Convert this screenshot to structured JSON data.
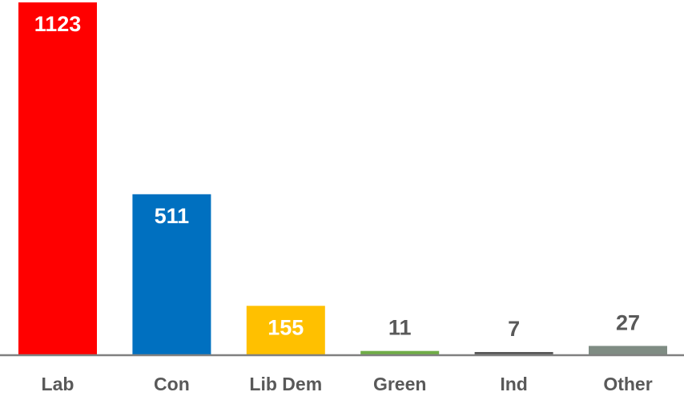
{
  "chart_data": {
    "type": "bar",
    "title": "",
    "xlabel": "",
    "ylabel": "",
    "categories": [
      "Lab",
      "Con",
      "Lib Dem",
      "Green",
      "Ind",
      "Other"
    ],
    "values": [
      1123,
      511,
      155,
      11,
      7,
      27
    ],
    "data_labels": [
      "1123",
      "511",
      "155",
      "11",
      "7",
      "27"
    ],
    "colors": [
      "#FF0000",
      "#0070C0",
      "#FFC000",
      "#70AD47",
      "#595959",
      "#7F8C83"
    ],
    "label_inside_colors": [
      "#FFFFFF",
      "#FFFFFF",
      "#FFFFFF",
      "#595959",
      "#595959",
      "#595959"
    ],
    "ylim": [
      0,
      1123
    ],
    "grid": false,
    "legend": "none"
  }
}
